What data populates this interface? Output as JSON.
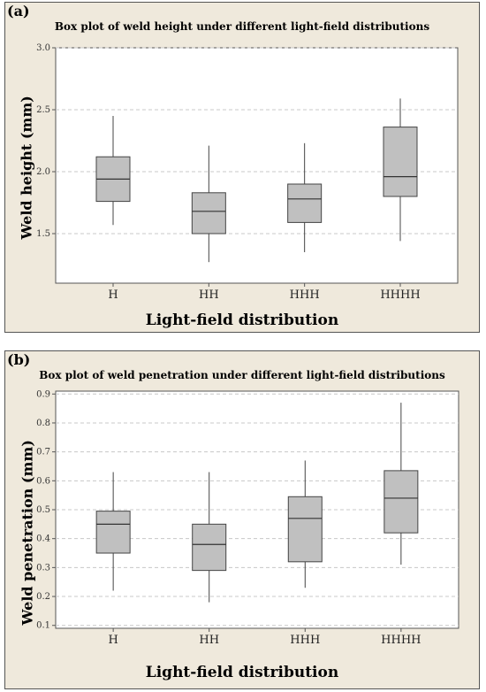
{
  "chart_data": [
    {
      "panel": "(a)",
      "type": "box",
      "title": "Box plot of weld height under different light-field distributions",
      "xlabel": "Light-field distribution",
      "ylabel": "Weld height (mm)",
      "ylim": [
        1.1,
        3.0
      ],
      "yticks": [
        1.5,
        2.0,
        2.5,
        3.0
      ],
      "ytick_labels": [
        "1.5",
        "2.0",
        "2.5",
        "3.0"
      ],
      "grid": true,
      "categories": [
        "H",
        "HH",
        "HHH",
        "HHHH"
      ],
      "boxes": [
        {
          "min": 1.57,
          "q1": 1.76,
          "median": 1.94,
          "q3": 2.12,
          "max": 2.45
        },
        {
          "min": 1.27,
          "q1": 1.5,
          "median": 1.68,
          "q3": 1.83,
          "max": 2.21
        },
        {
          "min": 1.35,
          "q1": 1.59,
          "median": 1.78,
          "q3": 1.9,
          "max": 2.23
        },
        {
          "min": 1.44,
          "q1": 1.8,
          "median": 1.96,
          "q3": 2.36,
          "max": 2.59
        }
      ],
      "box_color": "#c0c0c0"
    },
    {
      "panel": "(b)",
      "type": "box",
      "title": "Box plot of weld penetration under different light-field distributions",
      "xlabel": "Light-field distribution",
      "ylabel": "Weld penetration (mm)",
      "ylim": [
        0.09,
        0.91
      ],
      "yticks": [
        0.1,
        0.2,
        0.3,
        0.4,
        0.5,
        0.6,
        0.7,
        0.8,
        0.9
      ],
      "ytick_labels": [
        "0.1",
        "0.2",
        "0.3",
        "0.4",
        "0.5",
        "0.6",
        "0.7",
        "0.8",
        "0.9"
      ],
      "grid": true,
      "categories": [
        "H",
        "HH",
        "HHH",
        "HHHH"
      ],
      "boxes": [
        {
          "min": 0.22,
          "q1": 0.35,
          "median": 0.45,
          "q3": 0.495,
          "max": 0.63
        },
        {
          "min": 0.18,
          "q1": 0.29,
          "median": 0.38,
          "q3": 0.45,
          "max": 0.63
        },
        {
          "min": 0.23,
          "q1": 0.32,
          "median": 0.47,
          "q3": 0.545,
          "max": 0.67
        },
        {
          "min": 0.31,
          "q1": 0.42,
          "median": 0.54,
          "q3": 0.635,
          "max": 0.87
        }
      ],
      "box_color": "#c0c0c0"
    }
  ]
}
